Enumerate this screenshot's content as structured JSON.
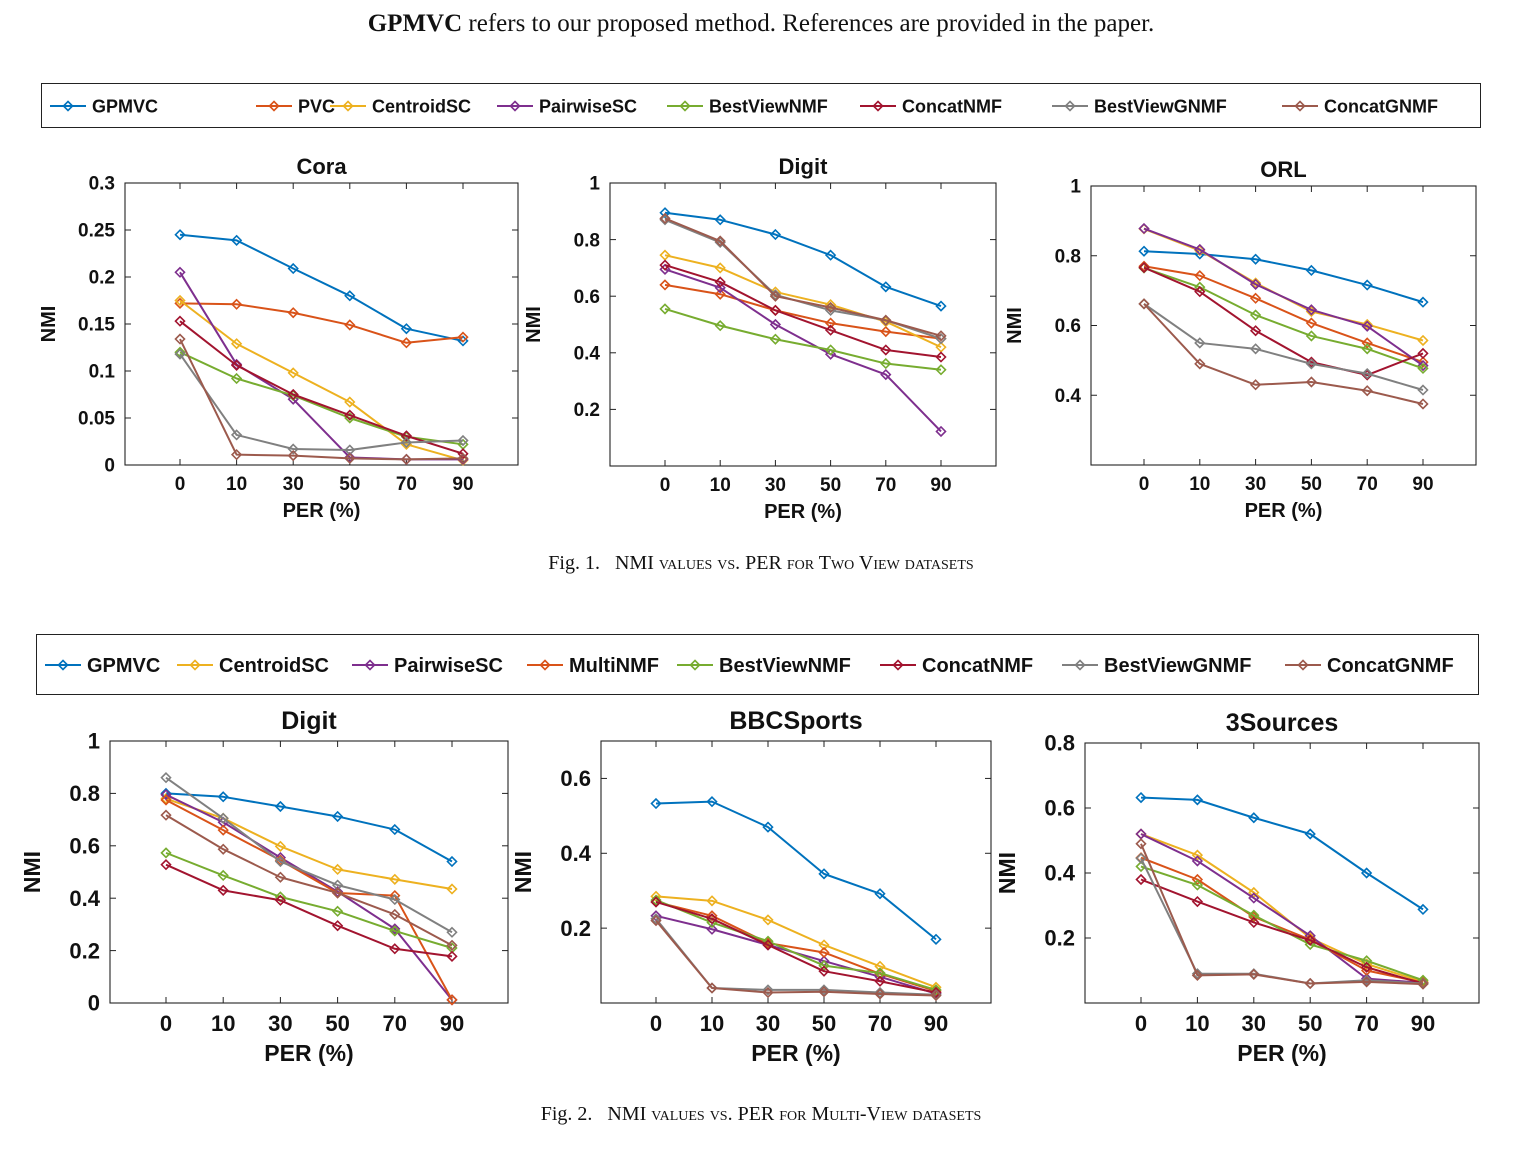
{
  "header": {
    "bold": "GPMVC",
    "rest": " refers to our proposed method. References are provided in the paper."
  },
  "captions": [
    {
      "label": "Fig. 1.",
      "sc": "NMI values vs. PER for Two View datasets"
    },
    {
      "label": "Fig. 2.",
      "sc": "NMI values vs. PER for Multi-View datasets"
    }
  ],
  "legends": [
    [
      "GPMVC",
      "PVC",
      "CentroidSC",
      "PairwiseSC",
      "BestViewNMF",
      "ConcatNMF",
      "BestViewGNMF",
      "ConcatGNMF"
    ],
    [
      "GPMVC",
      "CentroidSC",
      "PairwiseSC",
      "MultiNMF",
      "BestViewNMF",
      "ConcatNMF",
      "BestViewGNMF",
      "ConcatGNMF"
    ]
  ],
  "colors": {
    "GPMVC": "#0072bd",
    "PVC": "#d95319",
    "MultiNMF": "#d95319",
    "CentroidSC": "#edb120",
    "PairwiseSC": "#7e2f8e",
    "BestViewNMF": "#77ac30",
    "ConcatNMF": "#a2142f",
    "BestViewGNMF": "#808080",
    "ConcatGNMF": "#9c5a4d"
  },
  "chart_data": [
    {
      "type": "line",
      "title": "Cora",
      "xlabel": "PER (%)",
      "ylabel": "NMI",
      "categories": [
        "0",
        "10",
        "30",
        "50",
        "70",
        "90"
      ],
      "ylim": [
        0,
        0.3
      ],
      "yticks": [
        0,
        0.05,
        0.1,
        0.15,
        0.2,
        0.25,
        0.3
      ],
      "ytick_labels": [
        "0",
        "0.05",
        "0.1",
        "0.15",
        "0.2",
        "0.25",
        "0.3"
      ],
      "series": [
        {
          "name": "GPMVC",
          "values": [
            0.245,
            0.239,
            0.209,
            0.18,
            0.145,
            0.132
          ]
        },
        {
          "name": "PVC",
          "values": [
            0.172,
            0.171,
            0.162,
            0.149,
            0.13,
            0.136
          ]
        },
        {
          "name": "CentroidSC",
          "values": [
            0.175,
            0.129,
            0.098,
            0.067,
            0.022,
            0.005
          ]
        },
        {
          "name": "PairwiseSC",
          "values": [
            0.205,
            0.107,
            0.07,
            0.008,
            0.006,
            0.006
          ]
        },
        {
          "name": "BestViewNMF",
          "values": [
            0.12,
            0.092,
            0.074,
            0.05,
            0.03,
            0.022
          ]
        },
        {
          "name": "ConcatNMF",
          "values": [
            0.153,
            0.106,
            0.075,
            0.053,
            0.031,
            0.012
          ]
        },
        {
          "name": "BestViewGNMF",
          "values": [
            0.118,
            0.032,
            0.017,
            0.016,
            0.024,
            0.026
          ]
        },
        {
          "name": "ConcatGNMF",
          "values": [
            0.134,
            0.011,
            0.01,
            0.007,
            0.006,
            0.007
          ]
        }
      ]
    },
    {
      "type": "line",
      "title": "Digit",
      "xlabel": "PER (%)",
      "ylabel": "NMI",
      "categories": [
        "0",
        "10",
        "30",
        "50",
        "70",
        "90"
      ],
      "ylim": [
        0,
        1
      ],
      "yticks": [
        0.2,
        0.4,
        0.6,
        0.8,
        1
      ],
      "ytick_labels": [
        "0.2",
        "0.4",
        "0.6",
        "0.8",
        "1"
      ],
      "series": [
        {
          "name": "GPMVC",
          "values": [
            0.895,
            0.87,
            0.818,
            0.745,
            0.633,
            0.565
          ]
        },
        {
          "name": "PVC",
          "values": [
            0.64,
            0.607,
            0.55,
            0.505,
            0.475,
            0.45
          ]
        },
        {
          "name": "CentroidSC",
          "values": [
            0.745,
            0.7,
            0.615,
            0.57,
            0.51,
            0.42
          ]
        },
        {
          "name": "PairwiseSC",
          "values": [
            0.695,
            0.63,
            0.5,
            0.395,
            0.323,
            0.122
          ]
        },
        {
          "name": "BestViewNMF",
          "values": [
            0.555,
            0.496,
            0.448,
            0.41,
            0.362,
            0.34
          ]
        },
        {
          "name": "ConcatNMF",
          "values": [
            0.71,
            0.65,
            0.55,
            0.48,
            0.41,
            0.385
          ]
        },
        {
          "name": "BestViewGNMF",
          "values": [
            0.87,
            0.79,
            0.605,
            0.55,
            0.515,
            0.45
          ]
        },
        {
          "name": "ConcatGNMF",
          "values": [
            0.875,
            0.795,
            0.6,
            0.56,
            0.515,
            0.46
          ]
        }
      ]
    },
    {
      "type": "line",
      "title": "ORL",
      "xlabel": "PER (%)",
      "ylabel": "NMI",
      "categories": [
        "0",
        "10",
        "30",
        "50",
        "70",
        "90"
      ],
      "ylim": [
        0.2,
        1
      ],
      "yticks": [
        0.4,
        0.6,
        0.8,
        1
      ],
      "ytick_labels": [
        "0.4",
        "0.6",
        "0.8",
        "1"
      ],
      "series": [
        {
          "name": "GPMVC",
          "values": [
            0.813,
            0.805,
            0.79,
            0.758,
            0.716,
            0.667
          ]
        },
        {
          "name": "PVC",
          "values": [
            0.77,
            0.743,
            0.678,
            0.607,
            0.55,
            0.495
          ]
        },
        {
          "name": "CentroidSC",
          "values": [
            0.877,
            0.815,
            0.722,
            0.64,
            0.603,
            0.557
          ]
        },
        {
          "name": "PairwiseSC",
          "values": [
            0.878,
            0.818,
            0.718,
            0.645,
            0.598,
            0.485
          ]
        },
        {
          "name": "BestViewNMF",
          "values": [
            0.765,
            0.71,
            0.63,
            0.57,
            0.533,
            0.477
          ]
        },
        {
          "name": "ConcatNMF",
          "values": [
            0.766,
            0.697,
            0.585,
            0.495,
            0.458,
            0.52
          ]
        },
        {
          "name": "BestViewGNMF",
          "values": [
            0.662,
            0.55,
            0.533,
            0.49,
            0.462,
            0.415
          ]
        },
        {
          "name": "ConcatGNMF",
          "values": [
            0.662,
            0.49,
            0.43,
            0.438,
            0.413,
            0.375
          ]
        }
      ]
    },
    {
      "type": "line",
      "title": "Digit",
      "xlabel": "PER (%)",
      "ylabel": "NMI",
      "categories": [
        "0",
        "10",
        "30",
        "50",
        "70",
        "90"
      ],
      "ylim": [
        0,
        1
      ],
      "yticks": [
        0,
        0.2,
        0.4,
        0.6,
        0.8,
        1
      ],
      "ytick_labels": [
        "0",
        "0.2",
        "0.4",
        "0.6",
        "0.8",
        "1"
      ],
      "series": [
        {
          "name": "GPMVC",
          "values": [
            0.8,
            0.787,
            0.75,
            0.712,
            0.662,
            0.54
          ]
        },
        {
          "name": "CentroidSC",
          "values": [
            0.78,
            0.705,
            0.598,
            0.51,
            0.472,
            0.435
          ]
        },
        {
          "name": "PairwiseSC",
          "values": [
            0.795,
            0.69,
            0.555,
            0.425,
            0.283,
            0.012
          ]
        },
        {
          "name": "MultiNMF",
          "values": [
            0.775,
            0.66,
            0.545,
            0.42,
            0.41,
            0.012
          ]
        },
        {
          "name": "BestViewNMF",
          "values": [
            0.573,
            0.487,
            0.405,
            0.35,
            0.275,
            0.21
          ]
        },
        {
          "name": "ConcatNMF",
          "values": [
            0.528,
            0.43,
            0.392,
            0.295,
            0.207,
            0.178
          ]
        },
        {
          "name": "BestViewGNMF",
          "values": [
            0.86,
            0.705,
            0.54,
            0.45,
            0.395,
            0.27
          ]
        },
        {
          "name": "ConcatGNMF",
          "values": [
            0.717,
            0.587,
            0.48,
            0.42,
            0.338,
            0.22
          ]
        }
      ]
    },
    {
      "type": "line",
      "title": "BBCSports",
      "xlabel": "PER (%)",
      "ylabel": "NMI",
      "categories": [
        "0",
        "10",
        "30",
        "50",
        "70",
        "90"
      ],
      "ylim": [
        0,
        0.7
      ],
      "yticks": [
        0.2,
        0.4,
        0.6
      ],
      "ytick_labels": [
        "0.2",
        "0.4",
        "0.6"
      ],
      "series": [
        {
          "name": "GPMVC",
          "values": [
            0.533,
            0.538,
            0.47,
            0.345,
            0.292,
            0.17
          ]
        },
        {
          "name": "CentroidSC",
          "values": [
            0.285,
            0.273,
            0.222,
            0.155,
            0.098,
            0.042
          ]
        },
        {
          "name": "PairwiseSC",
          "values": [
            0.233,
            0.197,
            0.155,
            0.112,
            0.07,
            0.025
          ]
        },
        {
          "name": "MultiNMF",
          "values": [
            0.27,
            0.233,
            0.16,
            0.135,
            0.078,
            0.032
          ]
        },
        {
          "name": "BestViewNMF",
          "values": [
            0.275,
            0.215,
            0.165,
            0.1,
            0.08,
            0.035
          ]
        },
        {
          "name": "ConcatNMF",
          "values": [
            0.27,
            0.225,
            0.155,
            0.085,
            0.058,
            0.028
          ]
        },
        {
          "name": "BestViewGNMF",
          "values": [
            0.225,
            0.04,
            0.035,
            0.035,
            0.028,
            0.022
          ]
        },
        {
          "name": "ConcatGNMF",
          "values": [
            0.22,
            0.04,
            0.028,
            0.03,
            0.024,
            0.02
          ]
        }
      ]
    },
    {
      "type": "line",
      "title": "3Sources",
      "xlabel": "PER (%)",
      "ylabel": "NMI",
      "categories": [
        "0",
        "10",
        "30",
        "50",
        "70",
        "90"
      ],
      "ylim": [
        0,
        0.8
      ],
      "yticks": [
        0.2,
        0.4,
        0.6,
        0.8
      ],
      "ytick_labels": [
        "0.2",
        "0.4",
        "0.6",
        "0.8"
      ],
      "series": [
        {
          "name": "GPMVC",
          "values": [
            0.632,
            0.625,
            0.57,
            0.52,
            0.4,
            0.288
          ]
        },
        {
          "name": "CentroidSC",
          "values": [
            0.52,
            0.455,
            0.34,
            0.2,
            0.12,
            0.065
          ]
        },
        {
          "name": "PairwiseSC",
          "values": [
            0.52,
            0.437,
            0.323,
            0.207,
            0.075,
            0.062
          ]
        },
        {
          "name": "MultiNMF",
          "values": [
            0.447,
            0.38,
            0.265,
            0.195,
            0.1,
            0.063
          ]
        },
        {
          "name": "BestViewNMF",
          "values": [
            0.42,
            0.363,
            0.27,
            0.18,
            0.13,
            0.07
          ]
        },
        {
          "name": "ConcatNMF",
          "values": [
            0.38,
            0.312,
            0.248,
            0.193,
            0.11,
            0.06
          ]
        },
        {
          "name": "BestViewGNMF",
          "values": [
            0.445,
            0.09,
            0.09,
            0.06,
            0.07,
            0.06
          ]
        },
        {
          "name": "ConcatGNMF",
          "values": [
            0.49,
            0.085,
            0.088,
            0.06,
            0.065,
            0.058
          ]
        }
      ]
    }
  ]
}
